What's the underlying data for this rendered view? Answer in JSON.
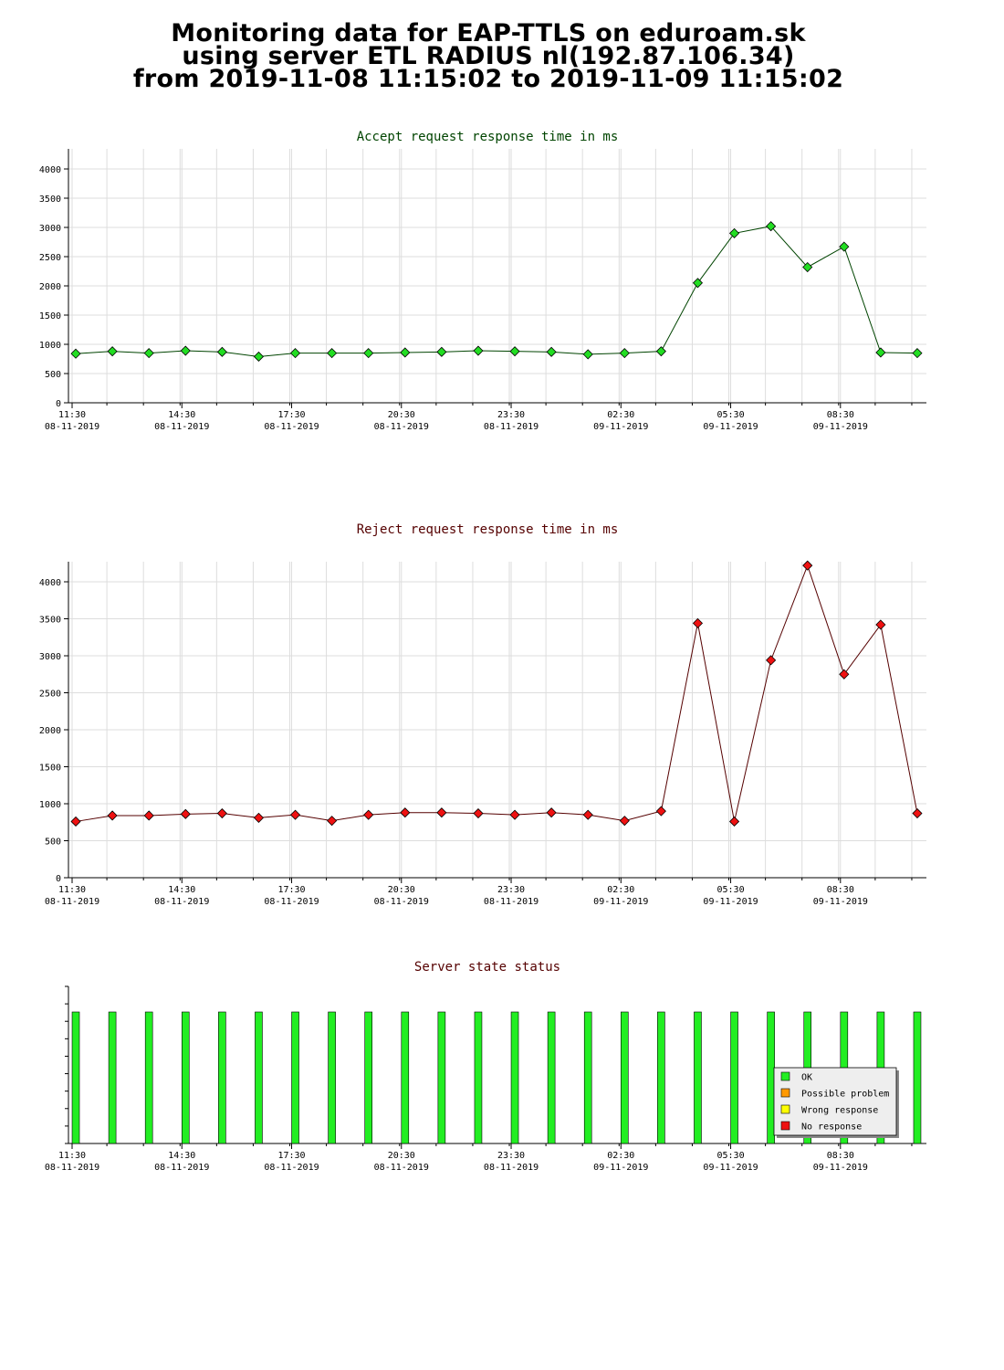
{
  "header": {
    "line1": "Monitoring data for EAP-TTLS on eduroam.sk",
    "line2": "using server ETL RADIUS nl(192.87.106.34)",
    "line3": "from 2019-11-08 11:15:02 to 2019-11-09 11:15:02"
  },
  "chart_data": [
    {
      "type": "line",
      "title": "Accept request response time in ms",
      "title_color": "#004400",
      "marker_color": "#22dd22",
      "line_color": "#004400",
      "xlabel": "",
      "ylabel": "",
      "ylim": [
        0,
        4000
      ],
      "yticks": [
        0,
        500,
        1000,
        1500,
        2000,
        2500,
        3000,
        3500,
        4000
      ],
      "xlim": [
        -0.1,
        23.35
      ],
      "xtick_positions": [
        0,
        3,
        6,
        9,
        12,
        15,
        18,
        21
      ],
      "xtick_labels": [
        [
          "11:30",
          "08-11-2019"
        ],
        [
          "14:30",
          "08-11-2019"
        ],
        [
          "17:30",
          "08-11-2019"
        ],
        [
          "20:30",
          "08-11-2019"
        ],
        [
          "23:30",
          "08-11-2019"
        ],
        [
          "02:30",
          "09-11-2019"
        ],
        [
          "05:30",
          "09-11-2019"
        ],
        [
          "08:30",
          "09-11-2019"
        ]
      ],
      "grid": true,
      "x": [
        0,
        1,
        2,
        3,
        4,
        5,
        6,
        7,
        8,
        9,
        10,
        11,
        12,
        13,
        14,
        15,
        16,
        17,
        18,
        19,
        20,
        21,
        22,
        23
      ],
      "values": [
        840,
        880,
        850,
        890,
        870,
        790,
        850,
        850,
        850,
        860,
        870,
        890,
        880,
        870,
        830,
        850,
        880,
        2050,
        2900,
        3020,
        2320,
        2670,
        860,
        850
      ]
    },
    {
      "type": "line",
      "title": "Reject request response time in ms",
      "title_color": "#550000",
      "marker_color": "#ee1111",
      "line_color": "#550000",
      "xlabel": "",
      "ylabel": "",
      "ylim": [
        0,
        4000
      ],
      "yticks": [
        0,
        500,
        1000,
        1500,
        2000,
        2500,
        3000,
        3500,
        4000
      ],
      "xlim": [
        -0.1,
        23.35
      ],
      "xtick_positions": [
        0,
        3,
        6,
        9,
        12,
        15,
        18,
        21
      ],
      "xtick_labels": [
        [
          "11:30",
          "08-11-2019"
        ],
        [
          "14:30",
          "08-11-2019"
        ],
        [
          "17:30",
          "08-11-2019"
        ],
        [
          "20:30",
          "08-11-2019"
        ],
        [
          "23:30",
          "08-11-2019"
        ],
        [
          "02:30",
          "09-11-2019"
        ],
        [
          "05:30",
          "09-11-2019"
        ],
        [
          "08:30",
          "09-11-2019"
        ]
      ],
      "grid": true,
      "x": [
        0,
        1,
        2,
        3,
        4,
        5,
        6,
        7,
        8,
        9,
        10,
        11,
        12,
        13,
        14,
        15,
        16,
        17,
        18,
        19,
        20,
        21,
        22,
        23
      ],
      "values": [
        760,
        840,
        840,
        860,
        870,
        810,
        850,
        770,
        850,
        880,
        880,
        870,
        850,
        880,
        850,
        770,
        900,
        3440,
        760,
        2940,
        4220,
        2750,
        3420,
        870
      ]
    },
    {
      "type": "bar",
      "title": "Server state status",
      "title_color": "#550000",
      "bar_color": "#22ee22",
      "xlim": [
        -0.1,
        23.35
      ],
      "xtick_positions": [
        0,
        3,
        6,
        9,
        12,
        15,
        18,
        21
      ],
      "xtick_labels": [
        [
          "11:30",
          "08-11-2019"
        ],
        [
          "14:30",
          "08-11-2019"
        ],
        [
          "17:30",
          "08-11-2019"
        ],
        [
          "20:30",
          "08-11-2019"
        ],
        [
          "23:30",
          "08-11-2019"
        ],
        [
          "02:30",
          "09-11-2019"
        ],
        [
          "05:30",
          "09-11-2019"
        ],
        [
          "08:30",
          "09-11-2019"
        ]
      ],
      "x": [
        0,
        1,
        2,
        3,
        4,
        5,
        6,
        7,
        8,
        9,
        10,
        11,
        12,
        13,
        14,
        15,
        16,
        17,
        18,
        19,
        20,
        21,
        22,
        23
      ],
      "states": [
        "OK",
        "OK",
        "OK",
        "OK",
        "OK",
        "OK",
        "OK",
        "OK",
        "OK",
        "OK",
        "OK",
        "OK",
        "OK",
        "OK",
        "OK",
        "OK",
        "OK",
        "OK",
        "OK",
        "OK",
        "OK",
        "OK",
        "OK",
        "OK"
      ],
      "legend_position": "right",
      "legend": [
        {
          "label": "OK",
          "color": "#22ee22"
        },
        {
          "label": "Possible problem",
          "color": "#ff9900"
        },
        {
          "label": "Wrong response",
          "color": "#ffff00"
        },
        {
          "label": "No response",
          "color": "#ee1111"
        }
      ]
    }
  ]
}
